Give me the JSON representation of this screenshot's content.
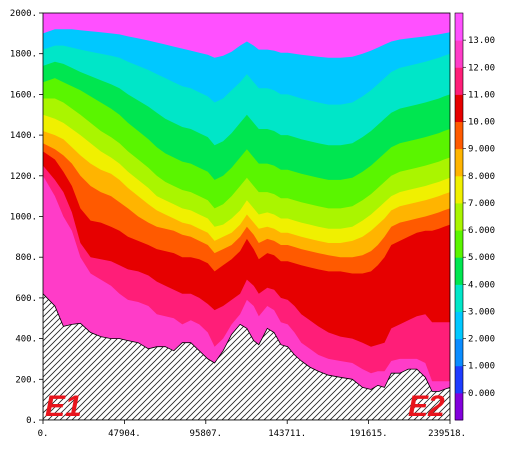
{
  "chart_data": {
    "type": "heatmap",
    "title": "",
    "xlabel": "",
    "ylabel": "",
    "x_tick_labels": [
      "0.",
      "47904.",
      "95807.",
      "143711.",
      "191615.",
      "239518."
    ],
    "x_ticks": [
      0,
      47904,
      95807,
      143711,
      191615,
      239518
    ],
    "xlim": [
      0,
      239518
    ],
    "y_tick_labels": [
      "0.",
      "200.",
      "400.",
      "600.",
      "800.",
      "1000.",
      "1200.",
      "1400.",
      "1600.",
      "1800.",
      "2000."
    ],
    "y_ticks": [
      0,
      200,
      400,
      600,
      800,
      1000,
      1200,
      1400,
      1600,
      1800,
      2000
    ],
    "ylim": [
      0,
      2000
    ],
    "colorbar": {
      "tick_labels": [
        "0.000",
        "1.000",
        "2.000",
        "3.000",
        "4.000",
        "5.000",
        "6.000",
        "7.000",
        "8.000",
        "9.000",
        "10.00",
        "11.00",
        "12.00",
        "13.00"
      ],
      "levels": [
        0,
        1,
        2,
        3,
        4,
        5,
        6,
        7,
        8,
        9,
        10,
        11,
        12,
        13
      ],
      "colors": [
        "#8200dc",
        "#1e3cff",
        "#0a8cff",
        "#00c8ff",
        "#00e6c8",
        "#00e650",
        "#5af500",
        "#aaf500",
        "#f0f000",
        "#ffb400",
        "#ff5a00",
        "#e60000",
        "#ff1e78",
        "#ff3cc8",
        "#ff50ff"
      ]
    },
    "corner_labels": [
      "E1",
      "E2"
    ],
    "bottom_boundary": {
      "x": [
        0,
        7000,
        12000,
        17000,
        22000,
        28000,
        34000,
        40000,
        45000,
        50000,
        56000,
        62000,
        67000,
        72000,
        77000,
        82000,
        87000,
        92000,
        97000,
        101000,
        106000,
        111000,
        116000,
        120000,
        124000,
        127000,
        132000,
        136000,
        140000,
        144000,
        148000,
        152000,
        157000,
        162000,
        168000,
        175000,
        182000,
        188000,
        193000,
        197000,
        201000,
        205000,
        210000,
        215000,
        220000,
        225000,
        229000,
        233000,
        236000,
        239518
      ],
      "y": [
        620,
        560,
        460,
        470,
        475,
        430,
        410,
        400,
        400,
        390,
        380,
        350,
        360,
        360,
        340,
        380,
        380,
        340,
        300,
        280,
        340,
        420,
        470,
        450,
        390,
        370,
        450,
        430,
        370,
        360,
        320,
        290,
        260,
        240,
        220,
        210,
        200,
        160,
        150,
        170,
        160,
        230,
        230,
        250,
        250,
        210,
        140,
        140,
        150,
        160
      ]
    },
    "bands": [
      {
        "level": 0,
        "top": [
          1200,
          1100,
          1000,
          930,
          800,
          720,
          690,
          660,
          620,
          590,
          580,
          560,
          520,
          510,
          500,
          470,
          490,
          470,
          430,
          360,
          400,
          470,
          520,
          590,
          560,
          510,
          560,
          540,
          480,
          470,
          430,
          380,
          350,
          320,
          300,
          290,
          280,
          250,
          230,
          240,
          240,
          290,
          300,
          300,
          300,
          280,
          190,
          190,
          190,
          190
        ]
      },
      {
        "level": 1,
        "top": [
          1250,
          1180,
          1120,
          1020,
          870,
          800,
          790,
          780,
          760,
          740,
          730,
          710,
          680,
          660,
          640,
          620,
          620,
          600,
          570,
          540,
          560,
          590,
          620,
          690,
          660,
          620,
          650,
          640,
          600,
          590,
          560,
          520,
          490,
          460,
          430,
          410,
          400,
          380,
          360,
          370,
          380,
          450,
          470,
          490,
          510,
          520,
          480,
          480,
          480,
          480
        ]
      },
      {
        "level": 2,
        "top": [
          1320,
          1280,
          1220,
          1150,
          1040,
          980,
          970,
          950,
          930,
          900,
          880,
          860,
          840,
          830,
          820,
          800,
          800,
          790,
          770,
          730,
          760,
          790,
          830,
          890,
          840,
          790,
          820,
          810,
          780,
          780,
          770,
          760,
          750,
          740,
          730,
          730,
          720,
          720,
          730,
          760,
          800,
          860,
          880,
          900,
          920,
          930,
          930,
          940,
          950,
          960
        ]
      },
      {
        "level": 3,
        "top": [
          1360,
          1330,
          1300,
          1260,
          1200,
          1150,
          1120,
          1100,
          1070,
          1040,
          1000,
          970,
          950,
          940,
          930,
          910,
          900,
          880,
          860,
          820,
          840,
          860,
          900,
          950,
          910,
          870,
          890,
          880,
          860,
          860,
          850,
          840,
          830,
          820,
          810,
          800,
          800,
          810,
          830,
          860,
          900,
          950,
          970,
          980,
          990,
          1000,
          1010,
          1020,
          1030,
          1040
        ]
      },
      {
        "level": 4,
        "top": [
          1420,
          1400,
          1380,
          1340,
          1300,
          1260,
          1230,
          1210,
          1180,
          1140,
          1100,
          1060,
          1030,
          1010,
          990,
          970,
          960,
          940,
          920,
          880,
          900,
          920,
          960,
          1010,
          970,
          940,
          950,
          940,
          920,
          920,
          910,
          900,
          890,
          880,
          870,
          870,
          880,
          900,
          930,
          960,
          990,
          1030,
          1050,
          1060,
          1070,
          1080,
          1090,
          1100,
          1110,
          1120
        ]
      },
      {
        "level": 5,
        "top": [
          1500,
          1480,
          1460,
          1430,
          1400,
          1360,
          1320,
          1290,
          1260,
          1220,
          1180,
          1140,
          1100,
          1080,
          1060,
          1040,
          1030,
          1010,
          990,
          950,
          960,
          990,
          1030,
          1080,
          1040,
          1010,
          1020,
          1010,
          990,
          990,
          980,
          970,
          960,
          950,
          940,
          940,
          950,
          980,
          1010,
          1040,
          1070,
          1100,
          1120,
          1130,
          1140,
          1150,
          1160,
          1170,
          1180,
          1190
        ]
      },
      {
        "level": 6,
        "top": [
          1580,
          1580,
          1560,
          1530,
          1500,
          1460,
          1420,
          1390,
          1360,
          1320,
          1280,
          1240,
          1200,
          1170,
          1150,
          1130,
          1120,
          1100,
          1080,
          1040,
          1060,
          1100,
          1150,
          1190,
          1150,
          1120,
          1120,
          1110,
          1090,
          1090,
          1080,
          1070,
          1060,
          1050,
          1040,
          1040,
          1050,
          1080,
          1110,
          1140,
          1170,
          1200,
          1220,
          1230,
          1240,
          1250,
          1260,
          1270,
          1280,
          1290
        ]
      },
      {
        "level": 7,
        "top": [
          1660,
          1680,
          1660,
          1640,
          1620,
          1590,
          1560,
          1530,
          1500,
          1460,
          1420,
          1380,
          1340,
          1310,
          1290,
          1270,
          1260,
          1240,
          1220,
          1180,
          1200,
          1240,
          1290,
          1330,
          1290,
          1260,
          1260,
          1250,
          1230,
          1230,
          1220,
          1210,
          1200,
          1190,
          1180,
          1180,
          1190,
          1220,
          1250,
          1280,
          1310,
          1340,
          1360,
          1370,
          1380,
          1390,
          1400,
          1410,
          1420,
          1430
        ]
      },
      {
        "level": 8,
        "top": [
          1740,
          1760,
          1750,
          1730,
          1710,
          1690,
          1670,
          1650,
          1630,
          1600,
          1570,
          1540,
          1510,
          1480,
          1460,
          1440,
          1430,
          1410,
          1390,
          1350,
          1370,
          1410,
          1460,
          1500,
          1460,
          1430,
          1430,
          1420,
          1400,
          1400,
          1390,
          1380,
          1370,
          1360,
          1350,
          1350,
          1360,
          1390,
          1420,
          1450,
          1480,
          1510,
          1530,
          1540,
          1550,
          1560,
          1570,
          1580,
          1590,
          1600
        ]
      },
      {
        "level": 9,
        "top": [
          1820,
          1840,
          1840,
          1830,
          1820,
          1810,
          1800,
          1790,
          1780,
          1760,
          1740,
          1720,
          1700,
          1680,
          1660,
          1640,
          1630,
          1610,
          1590,
          1560,
          1580,
          1620,
          1660,
          1700,
          1660,
          1630,
          1630,
          1620,
          1600,
          1600,
          1590,
          1580,
          1570,
          1560,
          1550,
          1550,
          1560,
          1590,
          1620,
          1650,
          1680,
          1710,
          1730,
          1740,
          1750,
          1760,
          1770,
          1780,
          1790,
          1800
        ]
      },
      {
        "level": 10,
        "top": [
          1900,
          1920,
          1920,
          1920,
          1915,
          1910,
          1905,
          1900,
          1895,
          1885,
          1875,
          1865,
          1855,
          1845,
          1835,
          1825,
          1815,
          1805,
          1795,
          1780,
          1790,
          1810,
          1840,
          1860,
          1840,
          1820,
          1820,
          1815,
          1805,
          1805,
          1800,
          1795,
          1790,
          1785,
          1780,
          1780,
          1785,
          1800,
          1815,
          1830,
          1845,
          1860,
          1870,
          1875,
          1880,
          1885,
          1890,
          1895,
          1900,
          1905
        ]
      }
    ]
  }
}
